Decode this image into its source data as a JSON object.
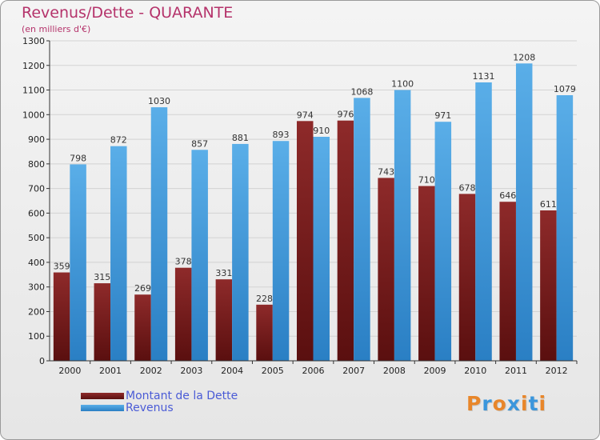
{
  "chart_data": {
    "type": "bar",
    "title": "Revenus/Dette - QUARANTE",
    "subtitle": "(en milliers d'€)",
    "categories": [
      "2000",
      "2001",
      "2002",
      "2003",
      "2004",
      "2005",
      "2006",
      "2007",
      "2008",
      "2009",
      "2010",
      "2011",
      "2012"
    ],
    "series": [
      {
        "name": "Montant de la Dette",
        "color": "#7a1a1a",
        "values": [
          359,
          315,
          269,
          378,
          331,
          228,
          974,
          976,
          743,
          710,
          678,
          646,
          611
        ]
      },
      {
        "name": "Revenus",
        "color": "#3a96dc",
        "values": [
          798,
          872,
          1030,
          857,
          881,
          893,
          910,
          1068,
          1100,
          971,
          1131,
          1208,
          1079
        ]
      }
    ],
    "yticks": [
      0,
      100,
      200,
      300,
      400,
      500,
      600,
      700,
      800,
      900,
      1000,
      1100,
      1200,
      1300
    ],
    "ylim": [
      0,
      1300
    ],
    "grid": true,
    "legend_position": "bottom-left"
  },
  "logo": {
    "text": "Proxiti",
    "letter_colors": [
      "#e8862a",
      "#3a96dc",
      "#e8862a",
      "#3a96dc",
      "#e8862a",
      "#3a96dc",
      "#e8862a"
    ]
  }
}
